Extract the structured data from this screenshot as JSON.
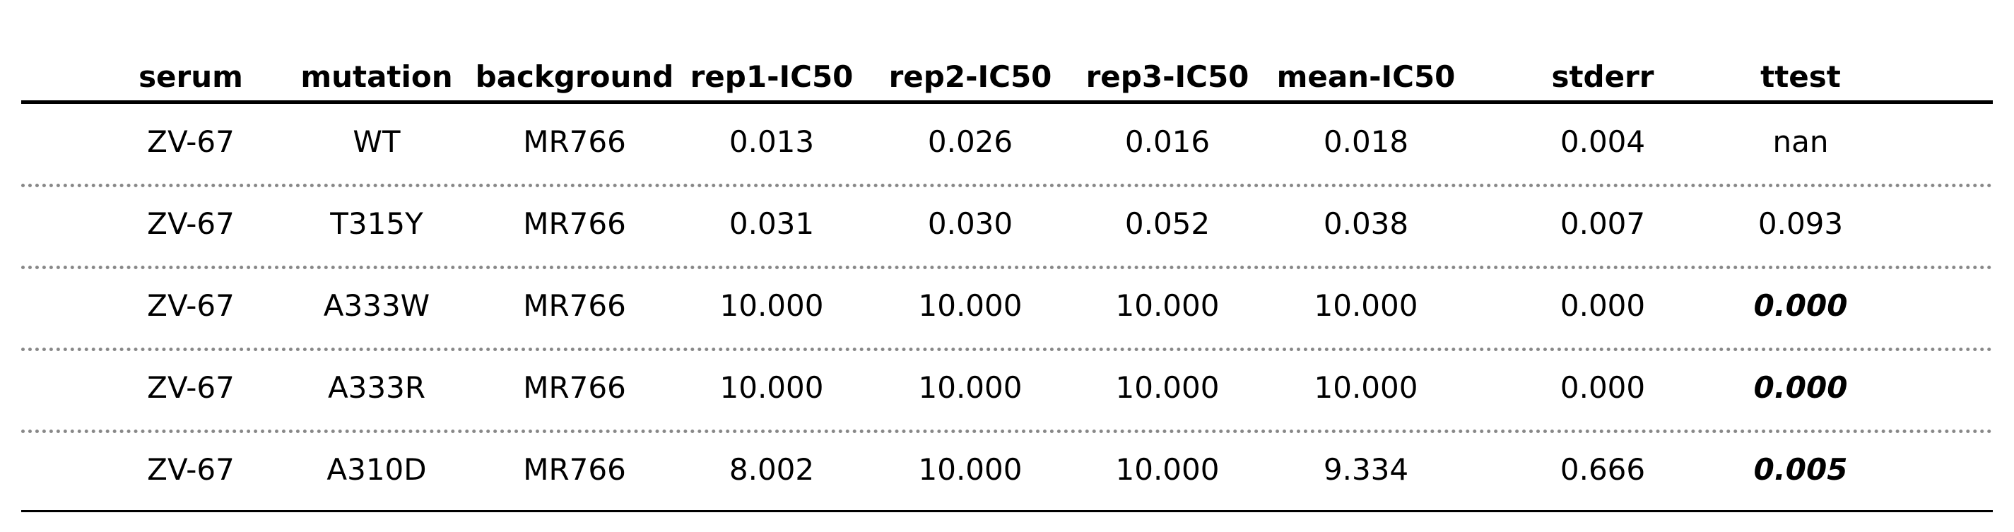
{
  "chart_data": {
    "type": "table",
    "columns": [
      "serum",
      "mutation",
      "background",
      "rep1-IC50",
      "rep2-IC50",
      "rep3-IC50",
      "mean-IC50",
      "stderr",
      "ttest"
    ],
    "rows": [
      [
        "ZV-67",
        "WT",
        "MR766",
        "0.013",
        "0.026",
        "0.016",
        "0.018",
        "0.004",
        "nan"
      ],
      [
        "ZV-67",
        "T315Y",
        "MR766",
        "0.031",
        "0.030",
        "0.052",
        "0.038",
        "0.007",
        "0.093"
      ],
      [
        "ZV-67",
        "A333W",
        "MR766",
        "10.000",
        "10.000",
        "10.000",
        "10.000",
        "0.000",
        "0.000"
      ],
      [
        "ZV-67",
        "A333R",
        "MR766",
        "10.000",
        "10.000",
        "10.000",
        "10.000",
        "0.000",
        "0.000"
      ],
      [
        "ZV-67",
        "A310D",
        "MR766",
        "8.002",
        "10.000",
        "10.000",
        "9.334",
        "0.666",
        "0.005"
      ]
    ],
    "highlighted_cells": [
      [
        2,
        8
      ],
      [
        3,
        8
      ],
      [
        4,
        8
      ]
    ]
  }
}
